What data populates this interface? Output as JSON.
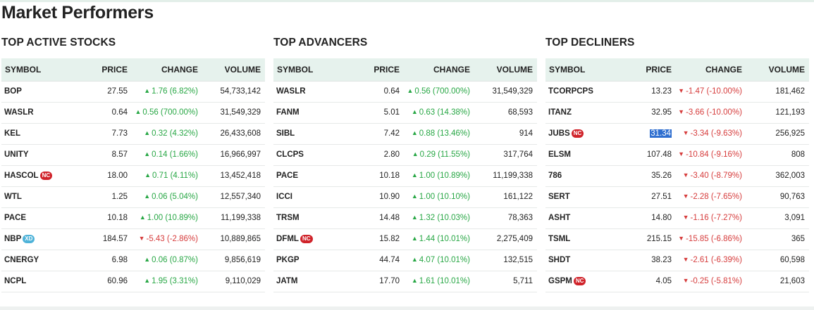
{
  "page_title": "Market Performers",
  "colors": {
    "up": "#28a745",
    "down": "#d63c3c",
    "header_bg": "#e6f2ed",
    "badge_nc": "#d0232a",
    "badge_xd": "#4fb3d9",
    "selection": "#2f6fd0"
  },
  "icons": {
    "up": "triangle-up-icon",
    "down": "triangle-down-icon"
  },
  "headers": {
    "symbol": "SYMBOL",
    "price": "PRICE",
    "change": "CHANGE",
    "volume": "VOLUME"
  },
  "panels": [
    {
      "title": "TOP ACTIVE STOCKS",
      "rows": [
        {
          "symbol": "BOP",
          "badge": "",
          "price": "27.55",
          "dir": "up",
          "change": "1.76 (6.82%)",
          "volume": "54,733,142"
        },
        {
          "symbol": "WASLR",
          "badge": "",
          "price": "0.64",
          "dir": "up",
          "change": "0.56 (700.00%)",
          "volume": "31,549,329"
        },
        {
          "symbol": "KEL",
          "badge": "",
          "price": "7.73",
          "dir": "up",
          "change": "0.32 (4.32%)",
          "volume": "26,433,608"
        },
        {
          "symbol": "UNITY",
          "badge": "",
          "price": "8.57",
          "dir": "up",
          "change": "0.14 (1.66%)",
          "volume": "16,966,997"
        },
        {
          "symbol": "HASCOL",
          "badge": "NC",
          "price": "18.00",
          "dir": "up",
          "change": "0.71 (4.11%)",
          "volume": "13,452,418"
        },
        {
          "symbol": "WTL",
          "badge": "",
          "price": "1.25",
          "dir": "up",
          "change": "0.06 (5.04%)",
          "volume": "12,557,340"
        },
        {
          "symbol": "PACE",
          "badge": "",
          "price": "10.18",
          "dir": "up",
          "change": "1.00 (10.89%)",
          "volume": "11,199,338"
        },
        {
          "symbol": "NBP",
          "badge": "XD",
          "price": "184.57",
          "dir": "down",
          "change": "-5.43 (-2.86%)",
          "volume": "10,889,865"
        },
        {
          "symbol": "CNERGY",
          "badge": "",
          "price": "6.98",
          "dir": "up",
          "change": "0.06 (0.87%)",
          "volume": "9,856,619"
        },
        {
          "symbol": "NCPL",
          "badge": "",
          "price": "60.96",
          "dir": "up",
          "change": "1.95 (3.31%)",
          "volume": "9,110,029"
        }
      ]
    },
    {
      "title": "TOP ADVANCERS",
      "rows": [
        {
          "symbol": "WASLR",
          "badge": "",
          "price": "0.64",
          "dir": "up",
          "change": "0.56 (700.00%)",
          "volume": "31,549,329"
        },
        {
          "symbol": "FANM",
          "badge": "",
          "price": "5.01",
          "dir": "up",
          "change": "0.63 (14.38%)",
          "volume": "68,593"
        },
        {
          "symbol": "SIBL",
          "badge": "",
          "price": "7.42",
          "dir": "up",
          "change": "0.88 (13.46%)",
          "volume": "914"
        },
        {
          "symbol": "CLCPS",
          "badge": "",
          "price": "2.80",
          "dir": "up",
          "change": "0.29 (11.55%)",
          "volume": "317,764"
        },
        {
          "symbol": "PACE",
          "badge": "",
          "price": "10.18",
          "dir": "up",
          "change": "1.00 (10.89%)",
          "volume": "11,199,338"
        },
        {
          "symbol": "ICCI",
          "badge": "",
          "price": "10.90",
          "dir": "up",
          "change": "1.00 (10.10%)",
          "volume": "161,122"
        },
        {
          "symbol": "TRSM",
          "badge": "",
          "price": "14.48",
          "dir": "up",
          "change": "1.32 (10.03%)",
          "volume": "78,363"
        },
        {
          "symbol": "DFML",
          "badge": "NC",
          "price": "15.82",
          "dir": "up",
          "change": "1.44 (10.01%)",
          "volume": "2,275,409"
        },
        {
          "symbol": "PKGP",
          "badge": "",
          "price": "44.74",
          "dir": "up",
          "change": "4.07 (10.01%)",
          "volume": "132,515"
        },
        {
          "symbol": "JATM",
          "badge": "",
          "price": "17.70",
          "dir": "up",
          "change": "1.61 (10.01%)",
          "volume": "5,711"
        }
      ]
    },
    {
      "title": "TOP DECLINERS",
      "rows": [
        {
          "symbol": "TCORPCPS",
          "badge": "",
          "price": "13.23",
          "dir": "down",
          "change": "-1.47 (-10.00%)",
          "volume": "181,462"
        },
        {
          "symbol": "ITANZ",
          "badge": "",
          "price": "32.95",
          "dir": "down",
          "change": "-3.66 (-10.00%)",
          "volume": "121,193"
        },
        {
          "symbol": "JUBS",
          "badge": "NC",
          "price": "31.34",
          "selected": true,
          "dir": "down",
          "change": "-3.34 (-9.63%)",
          "volume": "256,925"
        },
        {
          "symbol": "ELSM",
          "badge": "",
          "price": "107.48",
          "dir": "down",
          "change": "-10.84 (-9.16%)",
          "volume": "808"
        },
        {
          "symbol": "786",
          "badge": "",
          "price": "35.26",
          "dir": "down",
          "change": "-3.40 (-8.79%)",
          "volume": "362,003"
        },
        {
          "symbol": "SERT",
          "badge": "",
          "price": "27.51",
          "dir": "down",
          "change": "-2.28 (-7.65%)",
          "volume": "90,763"
        },
        {
          "symbol": "ASHT",
          "badge": "",
          "price": "14.80",
          "dir": "down",
          "change": "-1.16 (-7.27%)",
          "volume": "3,091"
        },
        {
          "symbol": "TSML",
          "badge": "",
          "price": "215.15",
          "dir": "down",
          "change": "-15.85 (-6.86%)",
          "volume": "365"
        },
        {
          "symbol": "SHDT",
          "badge": "",
          "price": "38.23",
          "dir": "down",
          "change": "-2.61 (-6.39%)",
          "volume": "60,598"
        },
        {
          "symbol": "GSPM",
          "badge": "NC",
          "price": "4.05",
          "dir": "down",
          "change": "-0.25 (-5.81%)",
          "volume": "21,603"
        }
      ]
    }
  ]
}
